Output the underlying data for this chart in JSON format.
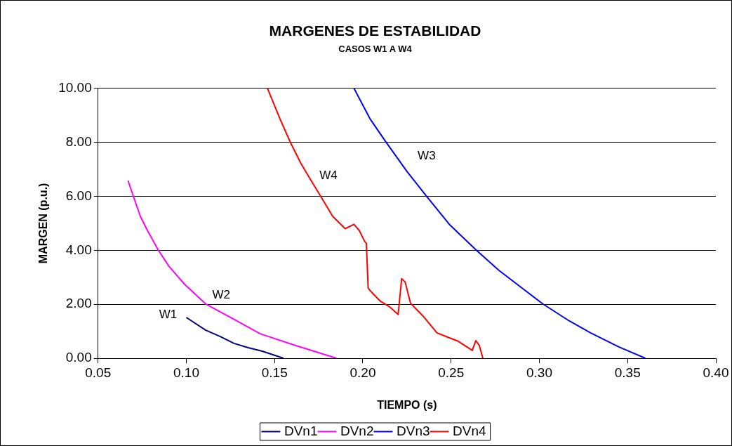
{
  "chart_data": {
    "type": "line",
    "title": "MARGENES DE ESTABILIDAD",
    "subtitle": "CASOS W1 A W4",
    "xlabel": "TIEMPO (s)",
    "ylabel": "MARGEN (p.u.)",
    "xlim": [
      0.05,
      0.4
    ],
    "xticks": [
      {
        "value": 0.05,
        "label": "0.05"
      },
      {
        "value": 0.1,
        "label": "0.10"
      },
      {
        "value": 0.15,
        "label": "0.15"
      },
      {
        "value": 0.2,
        "label": "0.20"
      },
      {
        "value": 0.25,
        "label": "0.25"
      },
      {
        "value": 0.3,
        "label": "0.30"
      },
      {
        "value": 0.35,
        "label": "0.35"
      },
      {
        "value": 0.4,
        "label": "0.40"
      }
    ],
    "ylim": [
      0,
      10
    ],
    "yticks": [
      {
        "value": 0,
        "label": "0.00"
      },
      {
        "value": 2,
        "label": "2.00"
      },
      {
        "value": 4,
        "label": "4.00"
      },
      {
        "value": 6,
        "label": "6.00"
      },
      {
        "value": 8,
        "label": "8.00"
      },
      {
        "value": 10,
        "label": "10.00"
      }
    ],
    "grid": "y",
    "legend": "bottom",
    "marker": "none",
    "line_style": "solid",
    "annotations": [
      "W1",
      "W2",
      "W3",
      "W4"
    ],
    "series": [
      {
        "name": "DVn1",
        "color": "#000080",
        "x": [
          0.1,
          0.111,
          0.119,
          0.127,
          0.135,
          0.143,
          0.155
        ],
        "values": [
          1.51,
          1.04,
          0.81,
          0.55,
          0.39,
          0.26,
          0.0
        ]
      },
      {
        "name": "DVn2",
        "color": "#ff00ff",
        "x": [
          0.067,
          0.07,
          0.074,
          0.078,
          0.084,
          0.09,
          0.099,
          0.111,
          0.127,
          0.142,
          0.162,
          0.185
        ],
        "values": [
          6.58,
          6.0,
          5.25,
          4.73,
          4.02,
          3.42,
          2.74,
          2.01,
          1.44,
          0.9,
          0.47,
          0.0
        ]
      },
      {
        "name": "DVn3",
        "color": "#0000ff",
        "x": [
          0.195,
          0.204,
          0.213,
          0.225,
          0.236,
          0.249,
          0.264,
          0.277,
          0.29,
          0.302,
          0.317,
          0.329,
          0.345,
          0.36
        ],
        "values": [
          10.0,
          8.88,
          8.02,
          6.92,
          6.01,
          4.96,
          4.02,
          3.26,
          2.61,
          2.01,
          1.38,
          0.94,
          0.42,
          0.0
        ]
      },
      {
        "name": "DVn4",
        "color": "#ff0000",
        "x": [
          0.146,
          0.153,
          0.159,
          0.165,
          0.171,
          0.176,
          0.183,
          0.19,
          0.195,
          0.198,
          0.201,
          0.202,
          0.203,
          0.204,
          0.21,
          0.215,
          0.22,
          0.222,
          0.224,
          0.227,
          0.234,
          0.242,
          0.248,
          0.254,
          0.262,
          0.264,
          0.266,
          0.268
        ],
        "values": [
          10.0,
          8.88,
          7.99,
          7.21,
          6.55,
          6.01,
          5.25,
          4.8,
          4.96,
          4.73,
          4.33,
          4.26,
          2.61,
          2.51,
          2.11,
          1.91,
          1.62,
          2.95,
          2.82,
          2.04,
          1.57,
          0.94,
          0.78,
          0.63,
          0.29,
          0.65,
          0.47,
          0.0
        ]
      }
    ]
  }
}
